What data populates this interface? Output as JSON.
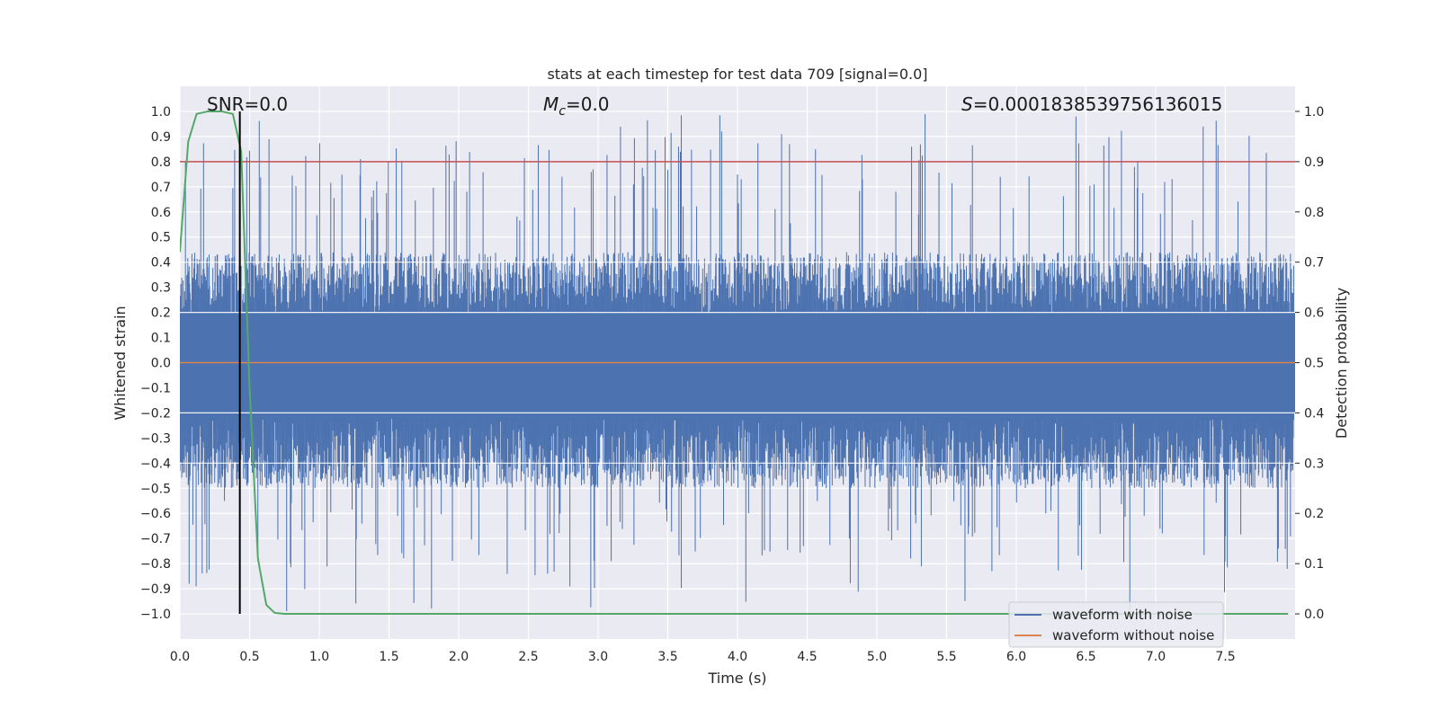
{
  "chart_data": {
    "type": "line",
    "title": "stats at each timestep for test data 709 [signal=0.0]",
    "xlabel": "Time (s)",
    "ylabel": "Whitened strain",
    "y2label": "Detection probability",
    "xlim": [
      0.0,
      8.0
    ],
    "ylim": [
      -1.1,
      1.1
    ],
    "y2lim": [
      -0.05,
      1.05
    ],
    "x_ticks": [
      "0.0",
      "0.5",
      "1.0",
      "1.5",
      "2.0",
      "2.5",
      "3.0",
      "3.5",
      "4.0",
      "4.5",
      "5.0",
      "5.5",
      "6.0",
      "6.5",
      "7.0",
      "7.5"
    ],
    "y_ticks": [
      "1.0",
      "0.9",
      "0.8",
      "0.7",
      "0.6",
      "0.5",
      "0.4",
      "0.3",
      "0.2",
      "0.1",
      "0.0",
      "−0.1",
      "−0.2",
      "−0.3",
      "−0.4",
      "−0.5",
      "−0.6",
      "−0.7",
      "−0.8",
      "−0.9",
      "−1.0"
    ],
    "y2_ticks": [
      "1.0",
      "0.9",
      "0.8",
      "0.7",
      "0.6",
      "0.5",
      "0.4",
      "0.3",
      "0.2",
      "0.1",
      "0.0"
    ],
    "annotations": {
      "snr": "SNR=0.0",
      "mc_symbol": "M",
      "mc_sub": "c",
      "mc_value": "=0.0",
      "s_symbol": "S",
      "s_value": "=0.0001838539756136015"
    },
    "threshold_y2": 0.9,
    "vline_x": 0.43,
    "series": [
      {
        "name": "waveform with noise",
        "color": "#4c72b0",
        "axis": "left",
        "description_envelope": {
          "typical_upper": 0.4,
          "typical_lower": -0.45,
          "peak_upper": 0.99,
          "peak_lower": -0.99
        }
      },
      {
        "name": "waveform without noise",
        "color": "#dd8452",
        "axis": "left",
        "x": [
          0.0,
          8.0
        ],
        "y": [
          0.0,
          0.0
        ]
      },
      {
        "name": "detection probability",
        "color": "#55a868",
        "axis": "right",
        "x": [
          0.0,
          0.06,
          0.12,
          0.2,
          0.3,
          0.38,
          0.44,
          0.5,
          0.56,
          0.62,
          0.68,
          0.75,
          1.0,
          2.0,
          4.0,
          6.0,
          7.95
        ],
        "y": [
          0.72,
          0.94,
          0.995,
          1.0,
          1.0,
          0.995,
          0.92,
          0.45,
          0.11,
          0.018,
          0.002,
          0.0,
          0.0,
          0.0,
          0.0,
          0.0,
          0.0
        ]
      }
    ],
    "threshold_color": "#c44e52",
    "legend": {
      "position": "lower-right",
      "entries": [
        "waveform with noise",
        "waveform without noise"
      ]
    }
  }
}
